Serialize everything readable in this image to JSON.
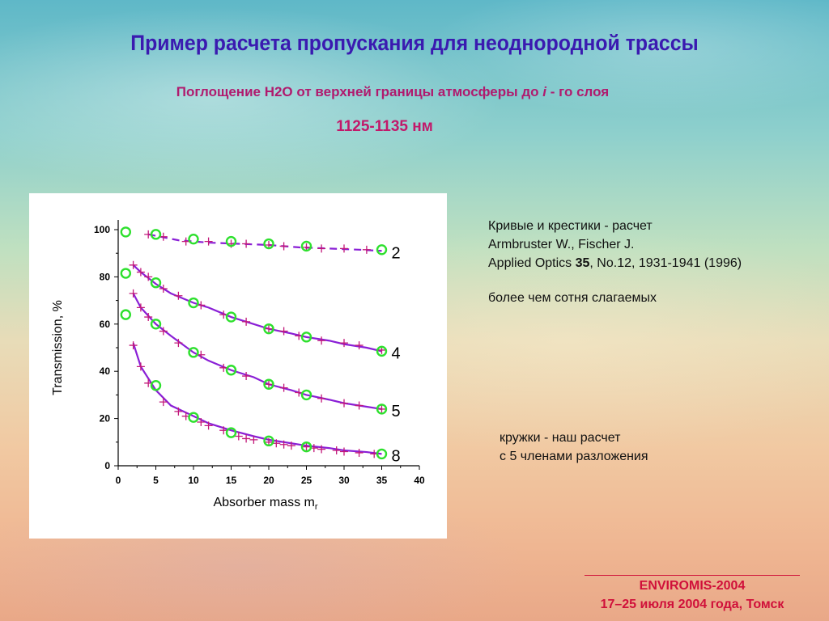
{
  "slide": {
    "title": "Пример расчета пропускания для неоднородной трассы",
    "subtitle_a": "Поглощение H2O от верхней границы атмосферы до ",
    "subtitle_i": "i",
    "subtitle_b": " - го слоя",
    "range": "1125-1135 нм",
    "note_line1": "Кривые и крестики - расчет",
    "note_line2": "Armbruster W., Fischer J.",
    "note_line3a": "Applied Optics ",
    "note_line3b": "35",
    "note_line3c": ", No.12, 1931-1941 (1996)",
    "note_line4": "более чем сотня слагаемых",
    "note_line5": "кружки - наш расчет",
    "note_line6": "с 5 членами разложения",
    "footer_line1": "ENVIROMIS-2004",
    "footer_line2": "17–25 июля 2004 года, Томск"
  },
  "colors": {
    "title": "#3a1ab0",
    "subtitle": "#b01a6e",
    "footer": "#d0103a",
    "curve": "#8a1fd6",
    "cross": "#c2187a",
    "circle": "#2ee02e"
  },
  "chart_data": {
    "type": "line",
    "xlabel": "Absorber mass m",
    "xlabel_sub": "r",
    "ylabel": "Transmission, %",
    "xlim": [
      0,
      40
    ],
    "ylim": [
      0,
      100
    ],
    "x_ticks": [
      0,
      5,
      10,
      15,
      20,
      25,
      30,
      35,
      40
    ],
    "y_ticks": [
      0,
      20,
      40,
      60,
      80,
      100
    ],
    "series": [
      {
        "name": "2",
        "style": "dashed",
        "curve_x": [
          4,
          8,
          12,
          16,
          20,
          24,
          28,
          32,
          35
        ],
        "curve_y": [
          98,
          95.5,
          94.5,
          94,
          93.5,
          92.5,
          92,
          91.5,
          91
        ],
        "crosses_x": [
          4,
          6,
          9,
          12,
          15,
          17,
          20,
          22,
          25,
          27,
          30,
          33
        ],
        "crosses_y": [
          98,
          97,
          95,
          95,
          94,
          94,
          93.5,
          93,
          92.5,
          92,
          92,
          91.5
        ],
        "circles_x": [
          1,
          5,
          10,
          15,
          20,
          25,
          35
        ],
        "circles_y": [
          99,
          98,
          96,
          95,
          94,
          93,
          91.5
        ]
      },
      {
        "name": "4",
        "style": "solid",
        "curve_x": [
          2,
          3,
          5,
          7,
          10,
          12,
          15,
          18,
          20,
          23,
          25,
          28,
          30,
          33,
          35
        ],
        "curve_y": [
          85,
          82,
          77,
          73,
          69,
          67,
          63,
          60,
          58,
          56,
          54.5,
          53,
          51.5,
          50,
          48.5
        ],
        "crosses_x": [
          2,
          3,
          4,
          6,
          8,
          11,
          14,
          17,
          20,
          22,
          24,
          27,
          30,
          32,
          35
        ],
        "crosses_y": [
          85,
          82,
          80,
          75,
          72,
          68,
          64,
          61,
          58,
          57,
          55,
          53,
          52,
          51,
          49
        ],
        "circles_x": [
          1,
          5,
          10,
          15,
          20,
          25,
          35
        ],
        "circles_y": [
          81.5,
          77.5,
          69,
          63,
          58,
          54.5,
          48.5
        ]
      },
      {
        "name": "5",
        "style": "solid",
        "curve_x": [
          2,
          3,
          5,
          7,
          10,
          12,
          15,
          18,
          20,
          23,
          25,
          28,
          30,
          33,
          35
        ],
        "curve_y": [
          73,
          67,
          60,
          55,
          48,
          44.5,
          40.5,
          37.5,
          34.5,
          32,
          30,
          28,
          26.5,
          25,
          24
        ],
        "crosses_x": [
          2,
          3,
          4,
          6,
          8,
          11,
          14,
          17,
          20,
          22,
          24,
          27,
          30,
          32,
          35
        ],
        "crosses_y": [
          73,
          67,
          63,
          57,
          52,
          47,
          41.5,
          38,
          34.5,
          33,
          31,
          28.5,
          26.5,
          25.5,
          24
        ],
        "circles_x": [
          1,
          5,
          10,
          15,
          20,
          25,
          35
        ],
        "circles_y": [
          64,
          60,
          48,
          40.5,
          34.5,
          30,
          24
        ]
      },
      {
        "name": "8",
        "style": "solid",
        "curve_x": [
          2,
          3,
          5,
          7,
          10,
          12,
          15,
          18,
          20,
          23,
          25,
          28,
          30,
          33,
          35
        ],
        "curve_y": [
          52,
          42,
          32,
          25.5,
          21,
          18,
          15,
          12.5,
          11,
          9.5,
          8.5,
          7.5,
          6.5,
          5.8,
          5
        ],
        "crosses_x": [
          2,
          3,
          4,
          6,
          8,
          9,
          11,
          12,
          14,
          16,
          17,
          18,
          20,
          21,
          22,
          23,
          25,
          26,
          27,
          29,
          30,
          32,
          34
        ],
        "crosses_y": [
          51,
          42,
          35,
          27,
          23,
          21,
          18.5,
          17,
          15,
          12.5,
          11.5,
          11,
          10,
          9.5,
          9,
          8.5,
          8,
          7.5,
          7,
          6.5,
          6,
          5.5,
          5
        ],
        "circles_x": [
          5,
          10,
          15,
          20,
          25,
          35
        ],
        "circles_y": [
          34,
          20.5,
          14,
          10.5,
          8,
          5
        ]
      }
    ]
  }
}
